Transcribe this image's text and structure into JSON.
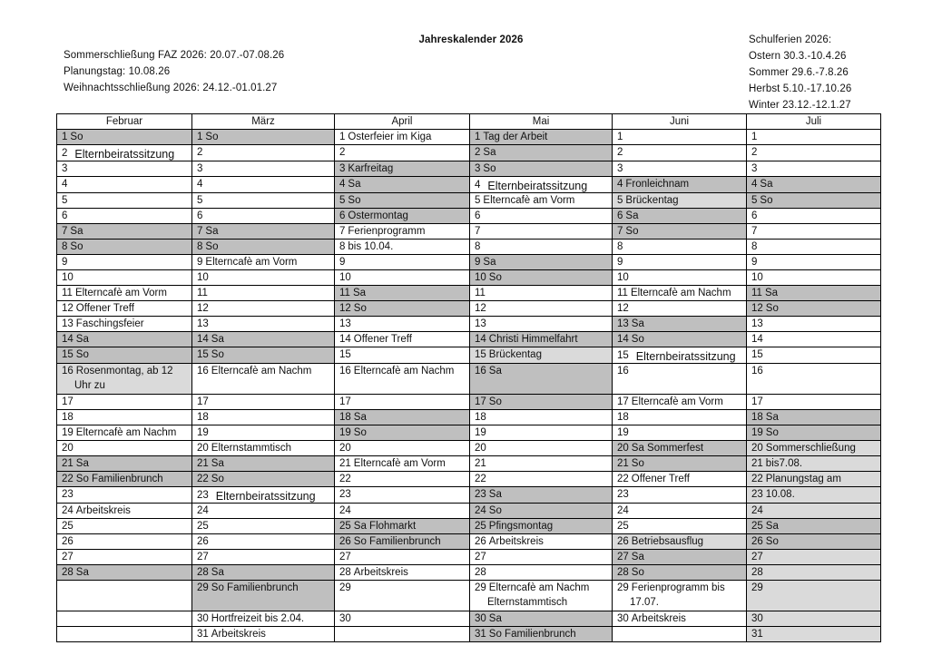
{
  "header": {
    "title": "Jahreskalender 2026",
    "left": [
      "Sommerschließung FAZ 2026: 20.07.-07.08.26",
      "Planungstag: 10.08.26",
      "Weihnachtsschließung 2026: 24.12.-01.01.27"
    ],
    "right": [
      "Schulferien 2026:",
      "Ostern 30.3.-10.4.26",
      "Sommer 29.6.-7.8.26",
      "Herbst 5.10.-17.10.26",
      "Winter 23.12.-12.1.27"
    ]
  },
  "colors": {
    "weekend_holiday": "#bfbfbf",
    "closure_bridge": "#dadada"
  },
  "months": [
    {
      "name": "Februar",
      "days": [
        {
          "n": "1",
          "e": "So",
          "s": "d"
        },
        {
          "n": "2",
          "e": "Elternbeiratssitzung",
          "alt": true
        },
        {
          "n": "3"
        },
        {
          "n": "4"
        },
        {
          "n": "5"
        },
        {
          "n": "6"
        },
        {
          "n": "7",
          "e": "Sa",
          "s": "d"
        },
        {
          "n": "8",
          "e": "So",
          "s": "d"
        },
        {
          "n": "9"
        },
        {
          "n": "10"
        },
        {
          "n": "11",
          "e": "Elterncafè am Vorm"
        },
        {
          "n": "12",
          "e": "Offener Treff"
        },
        {
          "n": "13",
          "e": "Faschingsfeier"
        },
        {
          "n": "14",
          "e": "Sa",
          "s": "d"
        },
        {
          "n": "15",
          "e": "So",
          "s": "d"
        },
        {
          "n": "16",
          "e": "Rosenmontag, ab 12 Uhr zu",
          "s": "l"
        },
        {
          "n": "17"
        },
        {
          "n": "18"
        },
        {
          "n": "19",
          "e": "Elterncafè am Nachm"
        },
        {
          "n": "20"
        },
        {
          "n": "21",
          "e": "Sa",
          "s": "d"
        },
        {
          "n": "22",
          "e": "So Familienbrunch",
          "s": "d"
        },
        {
          "n": "23"
        },
        {
          "n": "24",
          "e": "Arbeitskreis"
        },
        {
          "n": "25"
        },
        {
          "n": "26"
        },
        {
          "n": "27"
        },
        {
          "n": "28",
          "e": "Sa",
          "s": "d"
        },
        {
          "n": ""
        },
        {
          "n": ""
        },
        {
          "n": ""
        }
      ]
    },
    {
      "name": "März",
      "days": [
        {
          "n": "1",
          "e": "So",
          "s": "d"
        },
        {
          "n": "2"
        },
        {
          "n": "3"
        },
        {
          "n": "4"
        },
        {
          "n": "5"
        },
        {
          "n": "6"
        },
        {
          "n": "7",
          "e": "Sa",
          "s": "d"
        },
        {
          "n": "8",
          "e": "So",
          "s": "d"
        },
        {
          "n": "9",
          "e": "Elterncafè am Vorm"
        },
        {
          "n": "10"
        },
        {
          "n": "11"
        },
        {
          "n": "12"
        },
        {
          "n": "13"
        },
        {
          "n": "14",
          "e": "Sa",
          "s": "d"
        },
        {
          "n": "15",
          "e": "So",
          "s": "d"
        },
        {
          "n": "16",
          "e": "Elterncafè am Nachm"
        },
        {
          "n": "17"
        },
        {
          "n": "18"
        },
        {
          "n": "19"
        },
        {
          "n": "20",
          "e": "Elternstammtisch"
        },
        {
          "n": "21",
          "e": "Sa",
          "s": "d"
        },
        {
          "n": "22",
          "e": "So",
          "s": "d"
        },
        {
          "n": "23",
          "e": "Elternbeiratssitzung",
          "alt": true
        },
        {
          "n": "24"
        },
        {
          "n": "25"
        },
        {
          "n": "26"
        },
        {
          "n": "27"
        },
        {
          "n": "28",
          "e": "Sa",
          "s": "d"
        },
        {
          "n": "29",
          "e": "So Familienbrunch",
          "s": "d"
        },
        {
          "n": "30",
          "e": "Hortfreizeit bis 2.04."
        },
        {
          "n": "31",
          "e": "Arbeitskreis"
        }
      ]
    },
    {
      "name": "April",
      "days": [
        {
          "n": "1",
          "e": "Osterfeier im Kiga"
        },
        {
          "n": "2"
        },
        {
          "n": "3",
          "e": "Karfreitag",
          "s": "d"
        },
        {
          "n": "4",
          "e": "Sa",
          "s": "d"
        },
        {
          "n": "5",
          "e": "So",
          "s": "d"
        },
        {
          "n": "6",
          "e": "Ostermontag",
          "s": "d"
        },
        {
          "n": "7",
          "e": "Ferienprogramm"
        },
        {
          "n": "8",
          "e": "bis 10.04."
        },
        {
          "n": "9"
        },
        {
          "n": "10"
        },
        {
          "n": "11",
          "e": "Sa",
          "s": "d"
        },
        {
          "n": "12",
          "e": "So",
          "s": "d"
        },
        {
          "n": "13"
        },
        {
          "n": "14",
          "e": "Offener Treff"
        },
        {
          "n": "15"
        },
        {
          "n": "16",
          "e": "Elterncafè am Nachm"
        },
        {
          "n": "17"
        },
        {
          "n": "18",
          "e": "Sa",
          "s": "d"
        },
        {
          "n": "19",
          "e": "So",
          "s": "d"
        },
        {
          "n": "20"
        },
        {
          "n": "21",
          "e": "Elterncafè am Vorm"
        },
        {
          "n": "22"
        },
        {
          "n": "23"
        },
        {
          "n": "24"
        },
        {
          "n": "25",
          "e": "Sa Flohmarkt",
          "s": "d"
        },
        {
          "n": "26",
          "e": "So Familienbrunch",
          "s": "d"
        },
        {
          "n": "27"
        },
        {
          "n": "28",
          "e": "Arbeitskreis"
        },
        {
          "n": "29"
        },
        {
          "n": "30"
        },
        {
          "n": ""
        }
      ]
    },
    {
      "name": "Mai",
      "days": [
        {
          "n": "1",
          "e": "Tag der Arbeit",
          "s": "d"
        },
        {
          "n": "2",
          "e": "Sa",
          "s": "d"
        },
        {
          "n": "3",
          "e": "So",
          "s": "d"
        },
        {
          "n": "4",
          "e": "Elternbeiratssitzung",
          "alt": true
        },
        {
          "n": "5",
          "e": "Elterncafè am Vorm"
        },
        {
          "n": "6"
        },
        {
          "n": "7"
        },
        {
          "n": "8"
        },
        {
          "n": "9",
          "e": "Sa",
          "s": "d"
        },
        {
          "n": "10",
          "e": "So",
          "s": "d"
        },
        {
          "n": "11"
        },
        {
          "n": "12"
        },
        {
          "n": "13"
        },
        {
          "n": "14",
          "e": "Christi Himmelfahrt",
          "s": "d"
        },
        {
          "n": "15",
          "e": "Brückentag",
          "s": "l"
        },
        {
          "n": "16",
          "e": "Sa",
          "s": "d"
        },
        {
          "n": "17",
          "e": "So",
          "s": "d"
        },
        {
          "n": "18"
        },
        {
          "n": "19"
        },
        {
          "n": "20"
        },
        {
          "n": "21"
        },
        {
          "n": "22"
        },
        {
          "n": "23",
          "e": "Sa",
          "s": "d"
        },
        {
          "n": "24",
          "e": "So",
          "s": "d"
        },
        {
          "n": "25",
          "e": "Pfingsmontag",
          "s": "d"
        },
        {
          "n": "26",
          "e": "Arbeitskreis"
        },
        {
          "n": "27"
        },
        {
          "n": "28"
        },
        {
          "n": "29",
          "e": "Elterncafè am Nachm Elternstammtisch"
        },
        {
          "n": "30",
          "e": "Sa",
          "s": "d"
        },
        {
          "n": "31",
          "e": "So Familienbrunch",
          "s": "d"
        }
      ]
    },
    {
      "name": "Juni",
      "days": [
        {
          "n": "1"
        },
        {
          "n": "2"
        },
        {
          "n": "3"
        },
        {
          "n": "4",
          "e": "Fronleichnam",
          "s": "d"
        },
        {
          "n": "5",
          "e": "Brückentag",
          "s": "l"
        },
        {
          "n": "6",
          "e": "Sa",
          "s": "d"
        },
        {
          "n": "7",
          "e": "So",
          "s": "d"
        },
        {
          "n": "8"
        },
        {
          "n": "9"
        },
        {
          "n": "10"
        },
        {
          "n": "11",
          "e": "Elterncafè am Nachm"
        },
        {
          "n": "12"
        },
        {
          "n": "13",
          "e": "Sa",
          "s": "d"
        },
        {
          "n": "14",
          "e": "So",
          "s": "d"
        },
        {
          "n": "15",
          "e": "Elternbeiratssitzung",
          "alt": true
        },
        {
          "n": "16"
        },
        {
          "n": "17",
          "e": "Elterncafè am Vorm"
        },
        {
          "n": "18"
        },
        {
          "n": "19"
        },
        {
          "n": "20",
          "e": "Sa Sommerfest",
          "s": "d"
        },
        {
          "n": "21",
          "e": "So",
          "s": "d"
        },
        {
          "n": "22",
          "e": "Offener Treff"
        },
        {
          "n": "23"
        },
        {
          "n": "24"
        },
        {
          "n": "25"
        },
        {
          "n": "26",
          "e": "Betriebsausflug",
          "s": "l"
        },
        {
          "n": "27",
          "e": "Sa",
          "s": "d"
        },
        {
          "n": "28",
          "e": "So",
          "s": "d"
        },
        {
          "n": "29",
          "e": "Ferienprogramm bis 17.07."
        },
        {
          "n": "30",
          "e": "Arbeitskreis"
        },
        {
          "n": ""
        }
      ]
    },
    {
      "name": "Juli",
      "days": [
        {
          "n": "1"
        },
        {
          "n": "2"
        },
        {
          "n": "3"
        },
        {
          "n": "4",
          "e": "Sa",
          "s": "d"
        },
        {
          "n": "5",
          "e": "So",
          "s": "d"
        },
        {
          "n": "6"
        },
        {
          "n": "7"
        },
        {
          "n": "8"
        },
        {
          "n": "9"
        },
        {
          "n": "10"
        },
        {
          "n": "11",
          "e": "Sa",
          "s": "d"
        },
        {
          "n": "12",
          "e": "So",
          "s": "d"
        },
        {
          "n": "13"
        },
        {
          "n": "14"
        },
        {
          "n": "15"
        },
        {
          "n": "16"
        },
        {
          "n": "17"
        },
        {
          "n": "18",
          "e": "Sa",
          "s": "d"
        },
        {
          "n": "19",
          "e": "So",
          "s": "d"
        },
        {
          "n": "20",
          "e": "Sommerschließung",
          "s": "l"
        },
        {
          "n": "21",
          "e": "bis7.08.",
          "s": "l"
        },
        {
          "n": "22",
          "e": "Planungstag am",
          "s": "l"
        },
        {
          "n": "23",
          "e": "10.08.",
          "s": "l"
        },
        {
          "n": "24",
          "s": "l"
        },
        {
          "n": "25",
          "e": "Sa",
          "s": "d"
        },
        {
          "n": "26",
          "e": "So",
          "s": "d"
        },
        {
          "n": "27",
          "s": "l"
        },
        {
          "n": "28",
          "s": "l"
        },
        {
          "n": "29",
          "s": "l"
        },
        {
          "n": "30",
          "s": "l"
        },
        {
          "n": "31",
          "s": "l"
        }
      ]
    }
  ]
}
